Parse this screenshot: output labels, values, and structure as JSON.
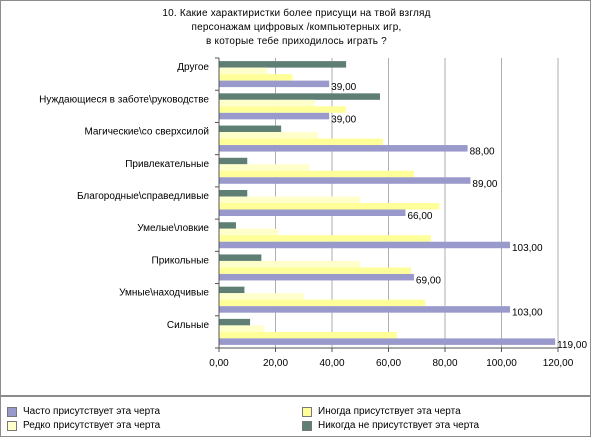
{
  "chart_data": {
    "type": "bar",
    "orientation": "horizontal",
    "title_lines": [
      "10. Какие характиристки более присущи на твой взгляд",
      "персонажам цифровых /компьютерных игр,",
      "в которые тебе приходилось играть ?"
    ],
    "categories": [
      "Другое",
      "Нуждающиеся в заботе\\руководстве",
      "Магические\\со сверхсилой",
      "Привлекательные",
      "Благородные\\справедливые",
      "Умелые\\ловкие",
      "Прикольные",
      "Умные\\находчивые",
      "Сильные"
    ],
    "series": [
      {
        "name": "Никогда не присутствует эта черта",
        "color": "#5f7f74",
        "values": [
          45,
          57,
          22,
          10,
          10,
          6,
          15,
          9,
          11
        ]
      },
      {
        "name": "Редко присутствует эта черта",
        "color": "#ffffcc",
        "values": [
          17,
          34,
          35,
          32,
          50,
          21,
          50,
          30,
          16
        ]
      },
      {
        "name": "Иногда присутствует эта черта",
        "color": "#ffff99",
        "values": [
          26,
          45,
          58,
          69,
          78,
          75,
          68,
          73,
          63
        ]
      },
      {
        "name": "Часто присутствует эта черта",
        "color": "#9999cc",
        "values": [
          39,
          39,
          88,
          89,
          66,
          103,
          69,
          103,
          119
        ]
      }
    ],
    "data_labels": [
      "39,00",
      "39,00",
      "88,00",
      "89,00",
      "66,00",
      "103,00",
      "69,00",
      "103,00",
      "119,00"
    ],
    "xticks": [
      "0,00",
      "20,00",
      "40,00",
      "60,00",
      "80,00",
      "100,00",
      "120,00"
    ],
    "xlim": [
      0,
      120
    ],
    "grid": true,
    "legend_position": "bottom",
    "legend": [
      {
        "label": "Часто присутствует эта черта",
        "color": "#9999cc"
      },
      {
        "label": "Иногда присутствует эта черта",
        "color": "#ffff99"
      },
      {
        "label": "Редко присутствует эта черта",
        "color": "#ffffcc"
      },
      {
        "label": "Никогда не присутствует эта черта",
        "color": "#5f7f74"
      }
    ]
  }
}
